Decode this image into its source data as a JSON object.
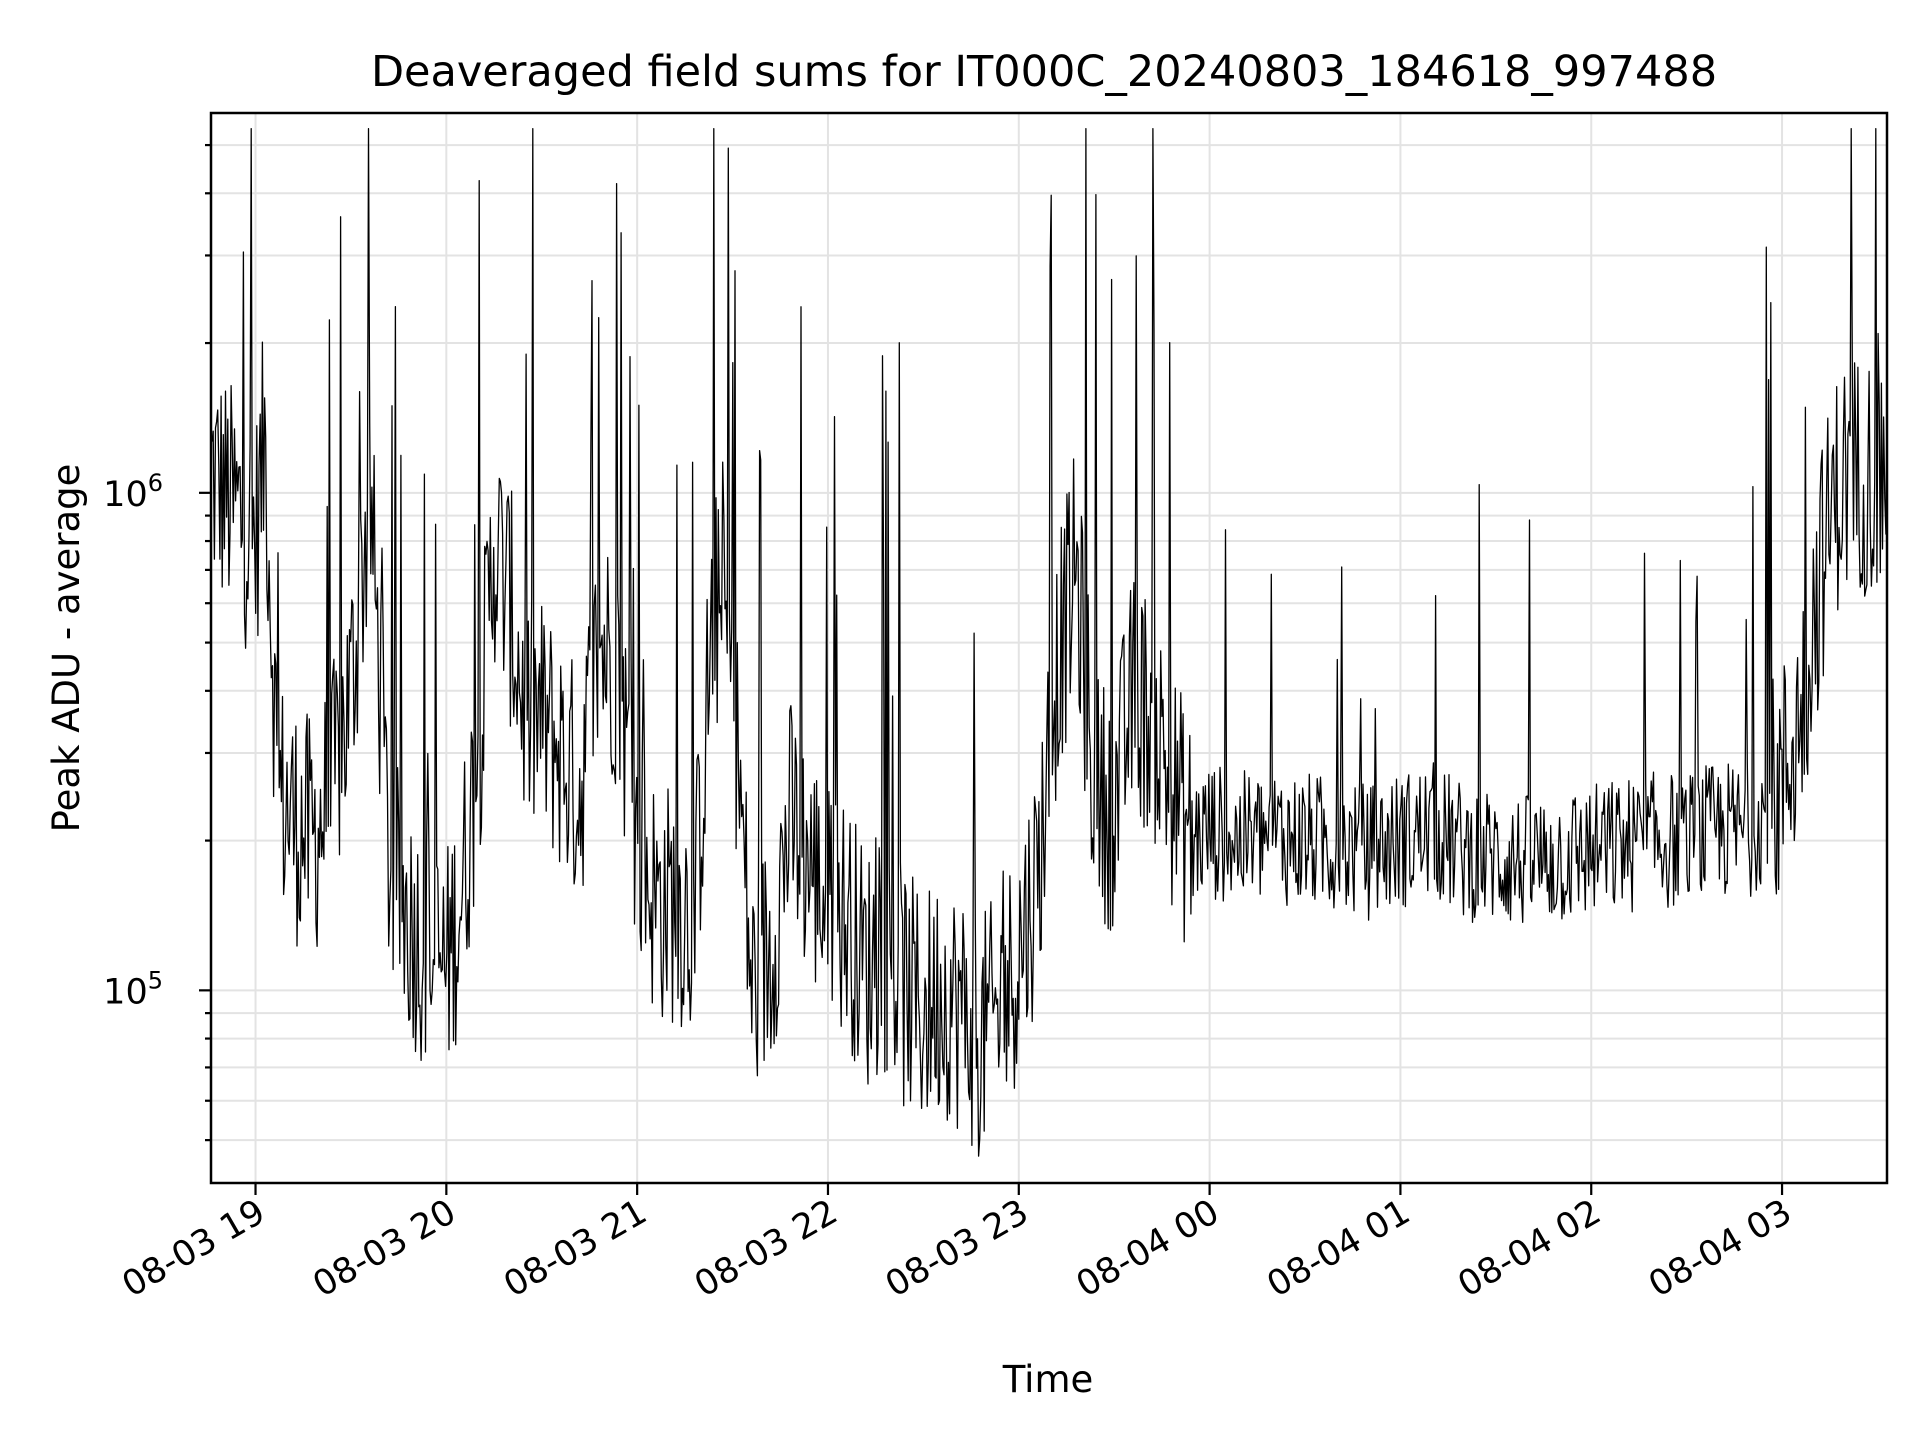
{
  "chart_data": {
    "type": "line",
    "title": "Deaveraged field sums for IT000C_20240803_184618_997488",
    "xlabel": "Time",
    "ylabel": "Peak ADU - average",
    "yscale": "log",
    "ylim": [
      41000,
      5800000
    ],
    "xlim": [
      "2024-08-03 18:46",
      "2024-08-04 03:33"
    ],
    "grid": true,
    "x_ticks": [
      "08-03 19",
      "08-03 20",
      "08-03 21",
      "08-03 22",
      "08-03 23",
      "08-04 00",
      "08-04 01",
      "08-04 02",
      "08-04 03"
    ],
    "y_ticks": [
      {
        "base": "10",
        "exp": "5",
        "value": 100000
      },
      {
        "base": "10",
        "exp": "6",
        "value": 1000000
      }
    ],
    "line_color": "#000000",
    "series": [
      {
        "x": [
          "2024-08-03 18:46",
          "2024-08-03 18:50",
          "2024-08-03 18:55",
          "2024-08-03 19:00",
          "2024-08-03 19:03",
          "2024-08-03 19:07",
          "2024-08-03 19:12",
          "2024-08-03 19:18",
          "2024-08-03 19:24",
          "2024-08-03 19:30",
          "2024-08-03 19:36",
          "2024-08-03 19:42",
          "2024-08-03 19:48",
          "2024-08-03 19:54",
          "2024-08-03 20:00",
          "2024-08-03 20:05",
          "2024-08-03 20:10",
          "2024-08-03 20:15",
          "2024-08-03 20:20",
          "2024-08-03 20:25",
          "2024-08-03 20:30",
          "2024-08-03 20:36",
          "2024-08-03 20:42",
          "2024-08-03 20:48",
          "2024-08-03 20:54",
          "2024-08-03 21:00",
          "2024-08-03 21:06",
          "2024-08-03 21:12",
          "2024-08-03 21:18",
          "2024-08-03 21:24",
          "2024-08-03 21:30",
          "2024-08-03 21:36",
          "2024-08-03 21:42",
          "2024-08-03 21:48",
          "2024-08-03 21:54",
          "2024-08-03 22:00",
          "2024-08-03 22:06",
          "2024-08-03 22:12",
          "2024-08-03 22:18",
          "2024-08-03 22:24",
          "2024-08-03 22:30",
          "2024-08-03 22:36",
          "2024-08-03 22:42",
          "2024-08-03 22:48",
          "2024-08-03 22:54",
          "2024-08-03 23:00",
          "2024-08-03 23:06",
          "2024-08-03 23:12",
          "2024-08-03 23:18",
          "2024-08-03 23:24",
          "2024-08-03 23:30",
          "2024-08-03 23:36",
          "2024-08-03 23:42",
          "2024-08-03 23:48",
          "2024-08-03 23:54",
          "2024-08-04 00:00",
          "2024-08-04 00:10",
          "2024-08-04 00:20",
          "2024-08-04 00:30",
          "2024-08-04 00:40",
          "2024-08-04 00:50",
          "2024-08-04 01:00",
          "2024-08-04 01:10",
          "2024-08-04 01:20",
          "2024-08-04 01:30",
          "2024-08-04 01:40",
          "2024-08-04 01:50",
          "2024-08-04 02:00",
          "2024-08-04 02:10",
          "2024-08-04 02:20",
          "2024-08-04 02:30",
          "2024-08-04 02:40",
          "2024-08-04 02:50",
          "2024-08-04 03:00",
          "2024-08-04 03:06",
          "2024-08-04 03:12",
          "2024-08-04 03:18",
          "2024-08-04 03:24",
          "2024-08-04 03:30",
          "2024-08-04 03:33"
        ],
        "y": [
          1100000,
          1000000,
          900000,
          800000,
          1300000,
          250000,
          220000,
          200000,
          250000,
          400000,
          1000000,
          180000,
          140000,
          120000,
          110000,
          160000,
          300000,
          800000,
          600000,
          350000,
          350000,
          300000,
          250000,
          500000,
          450000,
          200000,
          150000,
          150000,
          140000,
          600000,
          450000,
          100000,
          120000,
          220000,
          180000,
          150000,
          140000,
          110000,
          120000,
          100000,
          90000,
          100000,
          90000,
          80000,
          90000,
          120000,
          170000,
          450000,
          700000,
          250000,
          230000,
          400000,
          350000,
          260000,
          200000,
          210000,
          200000,
          205000,
          200000,
          195000,
          190000,
          200000,
          210000,
          190000,
          185000,
          180000,
          185000,
          190000,
          195000,
          200000,
          200000,
          210000,
          210000,
          260000,
          360000,
          700000,
          1050000,
          1100000,
          1100000,
          1080000
        ]
      }
    ]
  }
}
